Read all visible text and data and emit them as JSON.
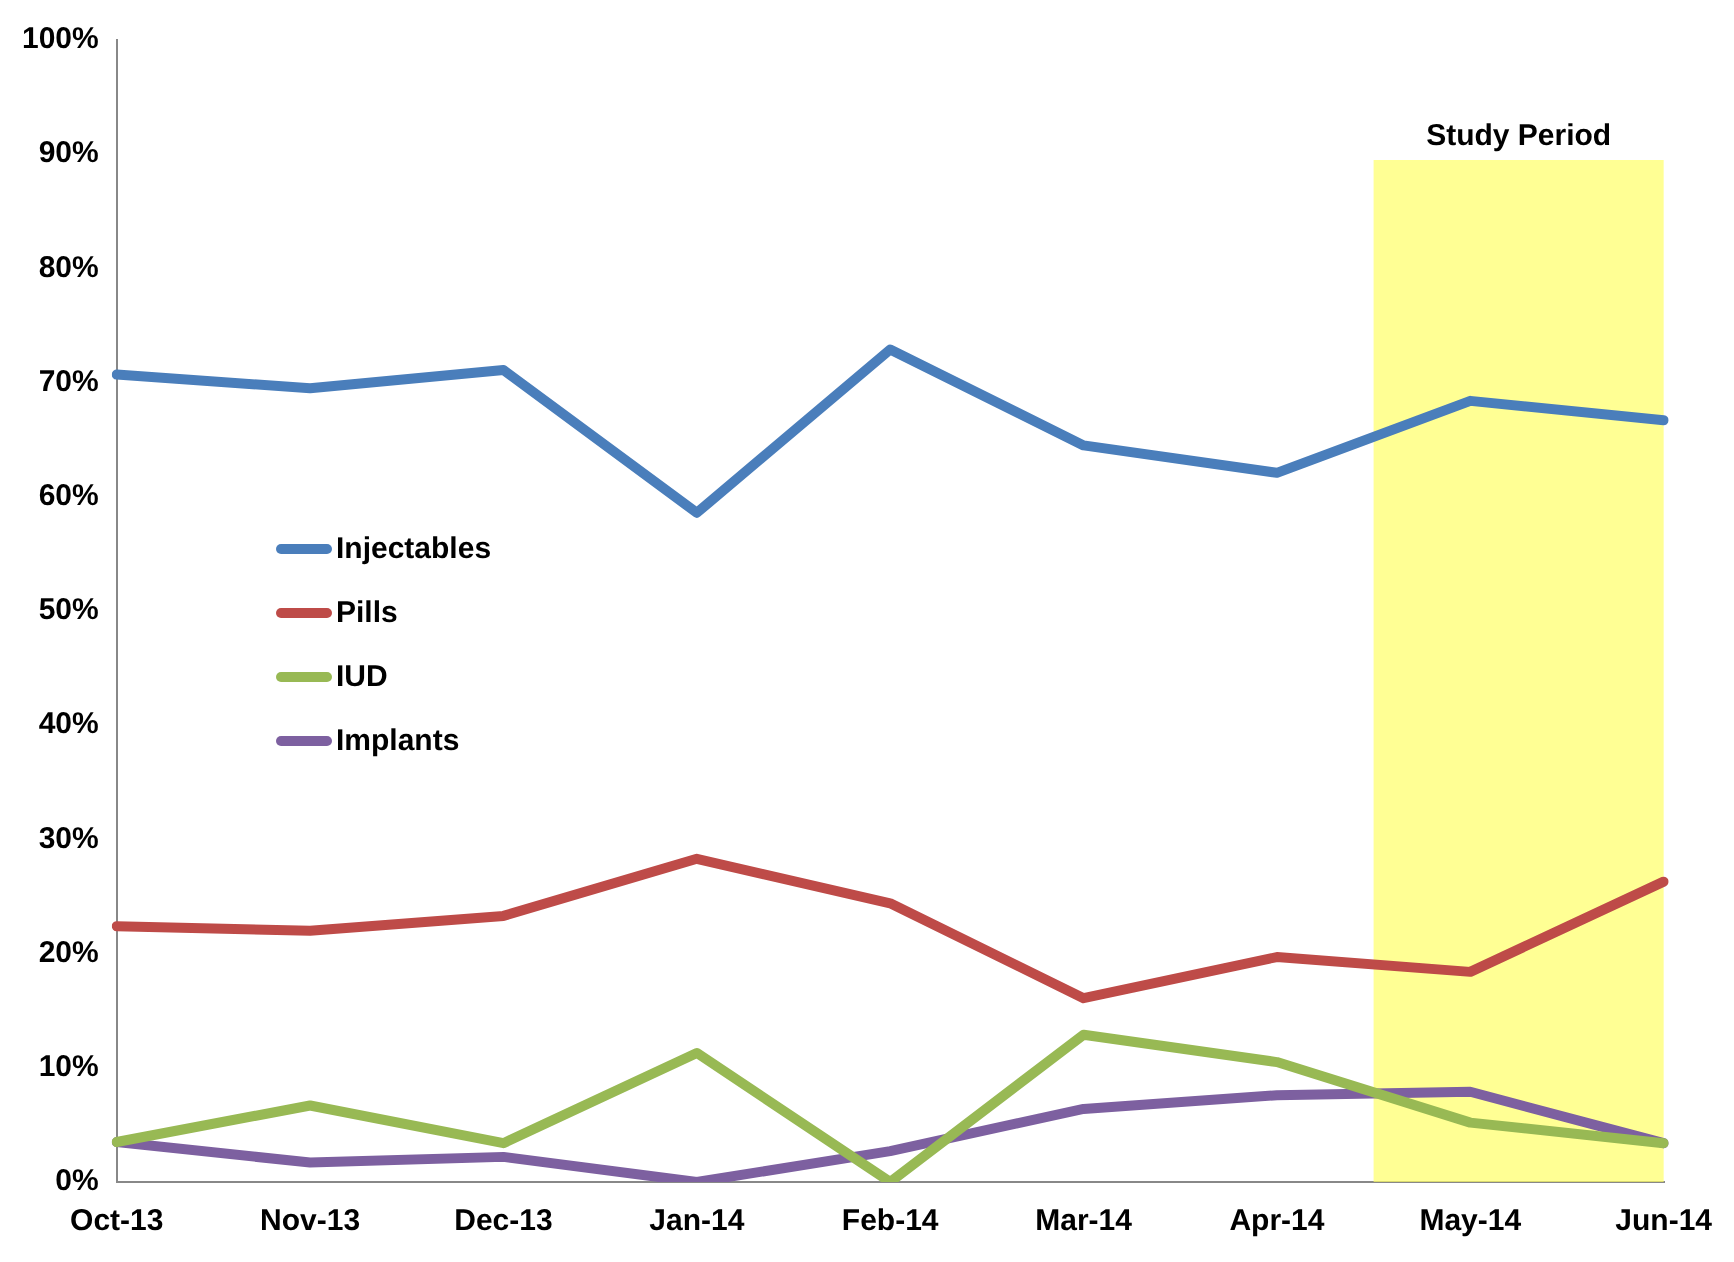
{
  "chart_data": {
    "type": "line",
    "categories": [
      "Oct-13",
      "Nov-13",
      "Dec-13",
      "Jan-14",
      "Feb-14",
      "Mar-14",
      "Apr-14",
      "May-14",
      "Jun-14"
    ],
    "series": [
      {
        "name": "Injectables",
        "color": "#4a7ebb",
        "values": [
          70.7,
          69.5,
          71.1,
          58.6,
          72.9,
          64.5,
          62.1,
          68.4,
          66.7
        ]
      },
      {
        "name": "Pills",
        "color": "#be4b48",
        "values": [
          22.4,
          22.0,
          23.3,
          28.3,
          24.4,
          16.1,
          19.7,
          18.4,
          26.3
        ]
      },
      {
        "name": "IUD",
        "color": "#98b954",
        "values": [
          3.5,
          6.7,
          3.4,
          11.3,
          0,
          12.9,
          10.5,
          5.2,
          3.4
        ]
      },
      {
        "name": "Implants",
        "color": "#7d60a0",
        "values": [
          3.5,
          1.7,
          2.2,
          0,
          2.7,
          6.4,
          7.6,
          7.9,
          3.4
        ]
      }
    ],
    "ylim": [
      0,
      100
    ],
    "yticks": [
      {
        "value": 0,
        "label": "0%"
      },
      {
        "value": 10,
        "label": "10%"
      },
      {
        "value": 20,
        "label": "20%"
      },
      {
        "value": 30,
        "label": "30%"
      },
      {
        "value": 40,
        "label": "40%"
      },
      {
        "value": 50,
        "label": "50%"
      },
      {
        "value": 60,
        "label": "60%"
      },
      {
        "value": 70,
        "label": "70%"
      },
      {
        "value": 80,
        "label": "80%"
      },
      {
        "value": 90,
        "label": "90%"
      },
      {
        "value": 100,
        "label": "100%"
      }
    ],
    "bands": [
      {
        "axis": "x",
        "from": "May-14",
        "to": "Jun-14",
        "label": "Study Period",
        "color": "#ffff66"
      }
    ],
    "grid": false,
    "legend": "center left",
    "marker": "none",
    "line_style": "solid"
  }
}
